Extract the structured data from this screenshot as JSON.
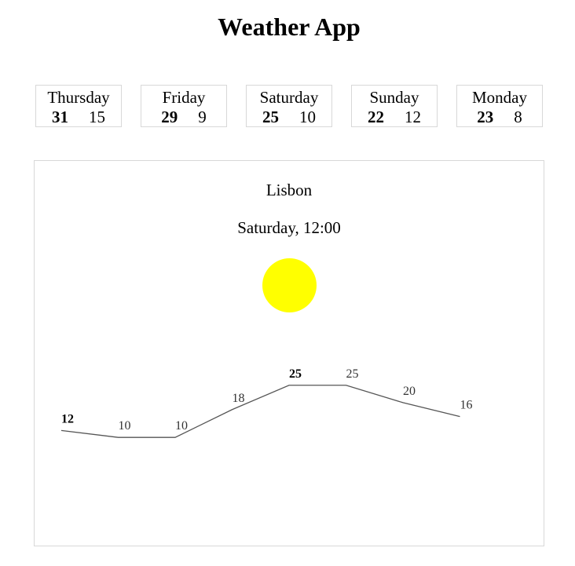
{
  "app": {
    "title": "Weather App"
  },
  "forecast": [
    {
      "day": "Thursday",
      "max": "31",
      "min": "15"
    },
    {
      "day": "Friday",
      "max": "29",
      "min": "9"
    },
    {
      "day": "Saturday",
      "max": "25",
      "min": "10"
    },
    {
      "day": "Sunday",
      "max": "22",
      "min": "12"
    },
    {
      "day": "Monday",
      "max": "23",
      "min": "8"
    }
  ],
  "detail": {
    "city": "Lisbon",
    "datetime": "Saturday, 12:00",
    "condition_icon": "sun-icon",
    "sun_color": "#ffff00"
  },
  "chart_data": {
    "type": "line",
    "values": [
      12,
      10,
      10,
      18,
      25,
      25,
      20,
      16
    ],
    "labels": [
      "12",
      "10",
      "10",
      "18",
      "25",
      "25",
      "20",
      "16"
    ],
    "bold_indices": [
      0,
      4
    ],
    "line_color": "#555555"
  }
}
